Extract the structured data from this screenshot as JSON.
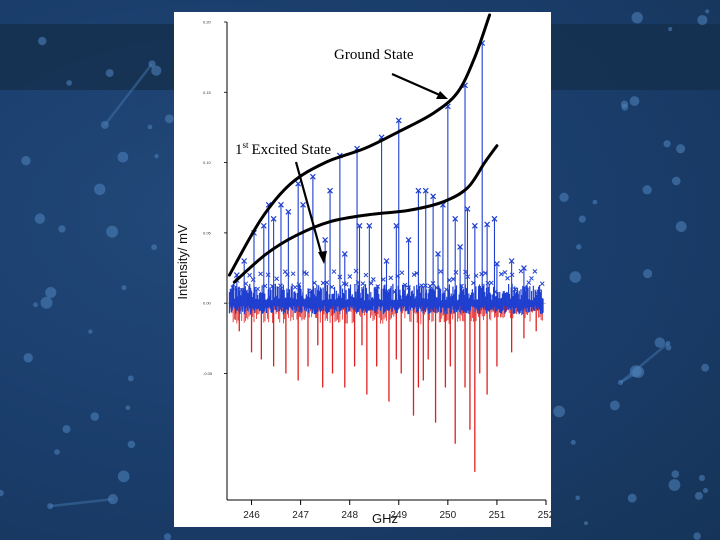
{
  "chart_data": {
    "type": "line",
    "xlabel": "GHz",
    "ylabel": "Intensity/ mV",
    "xlim": [
      245.5,
      252.0
    ],
    "ylim": [
      -0.14,
      0.2
    ],
    "x_ticks": [
      246,
      247,
      248,
      249,
      250,
      251,
      252
    ],
    "y_ticks": [
      0.2,
      0.15,
      0.1,
      0.05,
      0.0,
      -0.05
    ],
    "y_tick_labels": [
      "0.20",
      "0.15",
      "0.10",
      "0.05",
      "0.00",
      "-0.05"
    ],
    "annotations": [
      {
        "text": "Ground State"
      },
      {
        "text": "Excited State",
        "prefix": "1",
        "superscript": "st"
      }
    ],
    "series": [
      {
        "role": "measured",
        "color": "#1f3fd0",
        "peaks": [
          [
            245.7,
            0.02
          ],
          [
            245.85,
            0.03
          ],
          [
            246.05,
            0.05
          ],
          [
            246.25,
            0.055
          ],
          [
            246.45,
            0.06
          ],
          [
            246.6,
            0.07
          ],
          [
            246.75,
            0.065
          ],
          [
            246.95,
            0.085
          ],
          [
            247.25,
            0.09
          ],
          [
            247.6,
            0.08
          ],
          [
            247.8,
            0.105
          ],
          [
            248.15,
            0.11
          ],
          [
            248.65,
            0.118
          ],
          [
            249.0,
            0.13
          ],
          [
            249.4,
            0.08
          ],
          [
            249.7,
            0.076
          ],
          [
            250.0,
            0.14
          ],
          [
            250.35,
            0.155
          ],
          [
            250.7,
            0.185
          ],
          [
            249.9,
            0.07
          ],
          [
            250.4,
            0.067
          ],
          [
            250.8,
            0.056
          ],
          [
            247.5,
            0.045
          ],
          [
            248.4,
            0.055
          ],
          [
            249.2,
            0.045
          ],
          [
            250.95,
            0.06
          ],
          [
            251.3,
            0.03
          ],
          [
            246.35,
            0.07
          ],
          [
            247.05,
            0.07
          ],
          [
            248.2,
            0.055
          ],
          [
            248.95,
            0.055
          ],
          [
            249.55,
            0.08
          ],
          [
            250.15,
            0.06
          ],
          [
            250.55,
            0.055
          ],
          [
            247.9,
            0.035
          ],
          [
            248.75,
            0.03
          ],
          [
            249.8,
            0.035
          ],
          [
            250.25,
            0.04
          ],
          [
            251.0,
            0.028
          ],
          [
            251.55,
            0.025
          ]
        ]
      },
      {
        "role": "simulated",
        "color": "#e02020",
        "peaks": [
          [
            245.75,
            -0.02
          ],
          [
            246.0,
            -0.035
          ],
          [
            246.2,
            -0.04
          ],
          [
            246.45,
            -0.045
          ],
          [
            246.7,
            -0.05
          ],
          [
            246.95,
            -0.055
          ],
          [
            247.15,
            -0.045
          ],
          [
            247.45,
            -0.06
          ],
          [
            247.65,
            -0.05
          ],
          [
            247.9,
            -0.06
          ],
          [
            248.1,
            -0.045
          ],
          [
            248.35,
            -0.065
          ],
          [
            248.55,
            -0.045
          ],
          [
            248.8,
            -0.07
          ],
          [
            249.05,
            -0.05
          ],
          [
            249.3,
            -0.08
          ],
          [
            249.5,
            -0.055
          ],
          [
            249.75,
            -0.085
          ],
          [
            249.95,
            -0.06
          ],
          [
            250.15,
            -0.1
          ],
          [
            250.35,
            -0.06
          ],
          [
            250.55,
            -0.12
          ],
          [
            250.8,
            -0.065
          ],
          [
            251.0,
            -0.045
          ],
          [
            251.3,
            -0.035
          ],
          [
            251.55,
            -0.025
          ],
          [
            251.8,
            -0.02
          ],
          [
            247.35,
            -0.03
          ],
          [
            248.25,
            -0.03
          ],
          [
            249.6,
            -0.04
          ],
          [
            250.05,
            -0.045
          ],
          [
            250.65,
            -0.05
          ],
          [
            250.45,
            -0.09
          ],
          [
            249.4,
            -0.06
          ],
          [
            248.95,
            -0.04
          ]
        ]
      }
    ],
    "envelopes": [
      {
        "label_ref": "Ground State",
        "points": [
          [
            245.55,
            0.02
          ],
          [
            246.2,
            0.06
          ],
          [
            246.8,
            0.085
          ],
          [
            247.5,
            0.1
          ],
          [
            248.3,
            0.11
          ],
          [
            249.0,
            0.122
          ],
          [
            249.7,
            0.135
          ],
          [
            250.2,
            0.15
          ],
          [
            250.55,
            0.175
          ],
          [
            250.85,
            0.205
          ]
        ]
      },
      {
        "label_ref": "Excited State",
        "points": [
          [
            245.65,
            0.015
          ],
          [
            246.3,
            0.035
          ],
          [
            246.9,
            0.048
          ],
          [
            247.6,
            0.058
          ],
          [
            248.4,
            0.063
          ],
          [
            249.2,
            0.066
          ],
          [
            249.9,
            0.072
          ],
          [
            250.4,
            0.082
          ],
          [
            250.75,
            0.1
          ],
          [
            251.0,
            0.112
          ]
        ]
      }
    ]
  }
}
